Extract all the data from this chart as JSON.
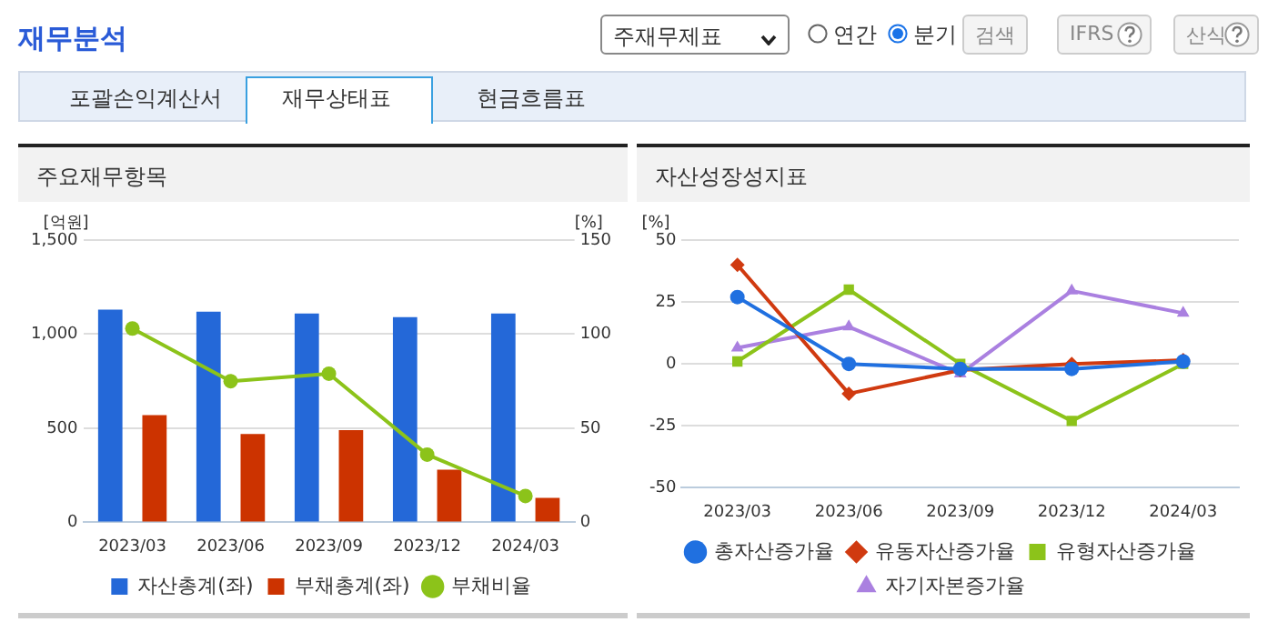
{
  "chart_data": [
    {
      "type": "bar",
      "title": "주요재무항목",
      "ylabel": "[억원]",
      "y2label": "[%]",
      "annotations": [
        "재무분석",
        "주재무제표",
        "연간",
        "분기",
        "검색",
        "IFRS",
        "산식",
        "포괄손익계산서",
        "재무상태표",
        "현금흐름표"
      ],
      "categories": [
        "2023/03",
        "2023/06",
        "2023/09",
        "2023/12",
        "2024/03"
      ],
      "series": [
        {
          "name": "자산총계(좌)",
          "color": "#2468d8",
          "values": [
            1130,
            1120,
            1110,
            1090,
            1110
          ]
        },
        {
          "name": "부채총계(좌)",
          "color": "#cc3300",
          "values": [
            570,
            470,
            490,
            280,
            130
          ]
        },
        {
          "name": "부채비율",
          "type": "line",
          "axis": "y2",
          "marker": "circle",
          "color": "#8cc31a",
          "values": [
            103,
            75,
            79,
            36,
            14
          ]
        }
      ],
      "ylim": [
        0,
        1500
      ],
      "yticks": [
        0,
        500,
        {
          "value": 1000,
          "label": "1,000"
        },
        {
          "value": 1500,
          "label": "1,500"
        }
      ],
      "y2lim": [
        0,
        150
      ],
      "y2ticks": [
        0,
        50,
        100,
        150
      ],
      "grid": "y",
      "legend": "bottom"
    },
    {
      "type": "line",
      "title": "자산성장성지표",
      "ylabel": "[%]",
      "categories": [
        "2023/03",
        "2023/06",
        "2023/09",
        "2023/12",
        "2024/03"
      ],
      "series": [
        {
          "name": "총자산증가율",
          "color": "#2070e0",
          "marker": "circle",
          "values": [
            27,
            0,
            -2,
            -2,
            1
          ]
        },
        {
          "name": "유동자산증가율",
          "color": "#d03a10",
          "marker": "diamond",
          "values": [
            40,
            -12,
            -2.5,
            0,
            1.5
          ]
        },
        {
          "name": "유형자산증가율",
          "color": "#8cc31a",
          "marker": "square",
          "values": [
            1,
            30,
            0,
            -23,
            0
          ]
        },
        {
          "name": "자기자본증가율",
          "color": "#aa80e0",
          "marker": "triangle",
          "values": [
            6.5,
            15,
            -4,
            29.5,
            20.5
          ]
        }
      ],
      "ylim": [
        -50,
        50
      ],
      "yticks": [
        -50,
        -25,
        0,
        25,
        50
      ],
      "grid": "y",
      "legend": "bottom"
    }
  ]
}
